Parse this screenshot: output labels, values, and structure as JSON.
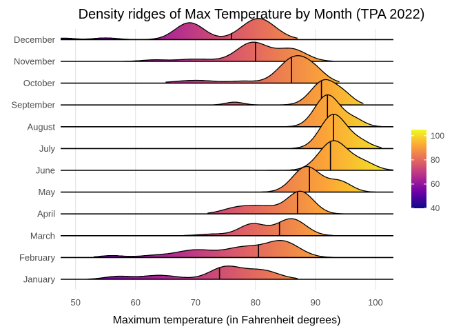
{
  "chart_data": {
    "type": "density_ridges",
    "title": "Density ridges of Max Temperature by Month (TPA 2022)",
    "xlabel": "Maximum temperature (in Fahrenheit degrees)",
    "ylabel": "",
    "xlim": [
      47.5,
      103
    ],
    "x_ticks": [
      50,
      60,
      70,
      80,
      90,
      100
    ],
    "grid": "vertical",
    "legend": {
      "position": "right",
      "type": "colorbar",
      "title": "",
      "ticks": [
        40,
        60,
        80,
        100
      ],
      "range": [
        40,
        105
      ],
      "colormap": "plasma"
    },
    "colormap_stops": [
      "#0d0887",
      "#6a00a8",
      "#b12a90",
      "#e16462",
      "#fca636",
      "#f0f921"
    ],
    "series": [
      {
        "name": "January",
        "median": 74,
        "peaks": [
          [
            57,
            0.12,
            2.2
          ],
          [
            64,
            0.17,
            3.0
          ],
          [
            75,
            0.52,
            2.6
          ],
          [
            81,
            0.38,
            2.8
          ]
        ],
        "range": [
          52,
          87
        ]
      },
      {
        "name": "February",
        "median": 80.5,
        "peaks": [
          [
            56,
            0.08,
            2.0
          ],
          [
            63,
            0.08,
            2.5
          ],
          [
            70,
            0.32,
            3.2
          ],
          [
            78,
            0.42,
            3.0
          ],
          [
            84.5,
            0.68,
            2.8
          ]
        ],
        "range": [
          53,
          93
        ]
      },
      {
        "name": "March",
        "median": 84,
        "peaks": [
          [
            73,
            0.07,
            2.5
          ],
          [
            79.5,
            0.5,
            2.2
          ],
          [
            86,
            0.72,
            2.4
          ]
        ],
        "range": [
          68,
          93
        ]
      },
      {
        "name": "April",
        "median": 87,
        "peaks": [
          [
            77,
            0.26,
            2.5
          ],
          [
            81.5,
            0.28,
            2.5
          ],
          [
            87.5,
            0.95,
            2.2
          ]
        ],
        "range": [
          72,
          95
        ]
      },
      {
        "name": "May",
        "median": 89,
        "peaks": [
          [
            88.5,
            1.08,
            2.3
          ],
          [
            94,
            0.45,
            2.0
          ]
        ],
        "range": [
          81,
          100
        ]
      },
      {
        "name": "June",
        "median": 92.5,
        "peaks": [
          [
            93,
            1.25,
            2.4
          ],
          [
            98,
            0.32,
            2.0
          ]
        ],
        "range": [
          82,
          103
        ]
      },
      {
        "name": "July",
        "median": 93,
        "peaks": [
          [
            93,
            1.45,
            2.2
          ],
          [
            97.5,
            0.28,
            1.8
          ]
        ],
        "range": [
          86,
          101
        ]
      },
      {
        "name": "August",
        "median": 92,
        "peaks": [
          [
            92,
            1.35,
            2.1
          ],
          [
            96.5,
            0.3,
            1.7
          ]
        ],
        "range": [
          83,
          101
        ]
      },
      {
        "name": "September",
        "median": 91,
        "peaks": [
          [
            76.5,
            0.12,
            1.5
          ],
          [
            91.5,
            1.05,
            2.2
          ],
          [
            95,
            0.3,
            1.6
          ]
        ],
        "range": [
          73,
          98
        ]
      },
      {
        "name": "October",
        "median": 86,
        "peaks": [
          [
            70,
            0.12,
            3.5
          ],
          [
            78,
            0.08,
            2.0
          ],
          [
            86.5,
            1.08,
            2.6
          ],
          [
            90,
            0.35,
            2.0
          ]
        ],
        "range": [
          65,
          94
        ]
      },
      {
        "name": "November",
        "median": 80,
        "peaks": [
          [
            63,
            0.06,
            2.0
          ],
          [
            70,
            0.1,
            3.0
          ],
          [
            79.5,
            0.8,
            2.6
          ],
          [
            86,
            0.52,
            2.5
          ]
        ],
        "range": [
          58,
          93
        ]
      },
      {
        "name": "December",
        "median": 76,
        "peaks": [
          [
            48,
            0.06,
            1.8
          ],
          [
            55,
            0.07,
            2.0
          ],
          [
            69,
            0.72,
            2.4
          ],
          [
            80.5,
            0.9,
            2.8
          ]
        ],
        "range": [
          47.5,
          87
        ]
      }
    ]
  }
}
